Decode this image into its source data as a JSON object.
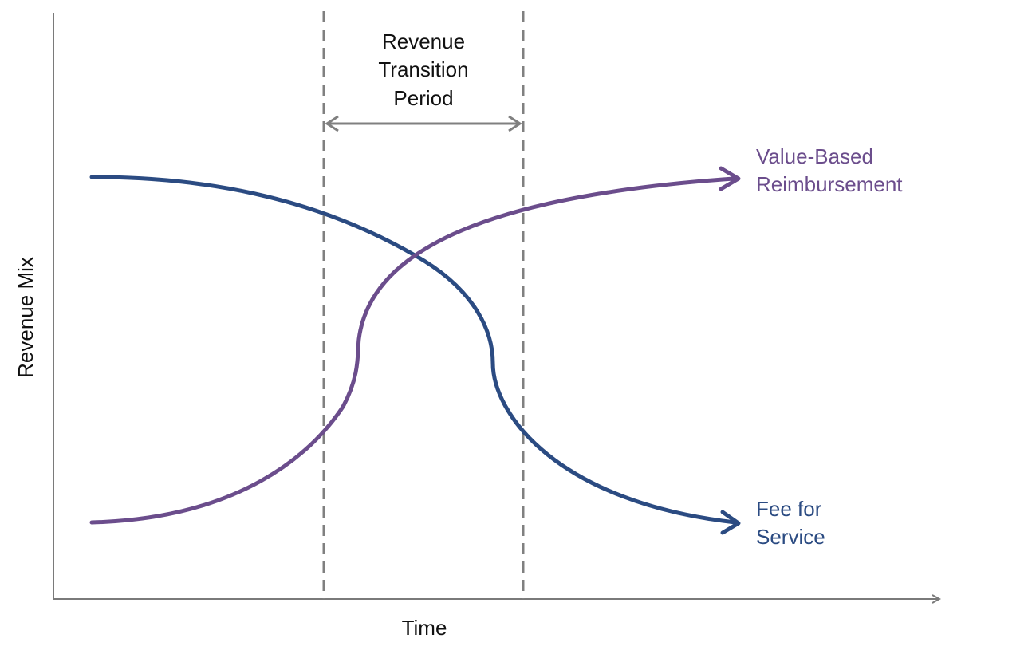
{
  "axes": {
    "y_label": "Revenue Mix",
    "x_label": "Time"
  },
  "transition": {
    "line1": "Revenue",
    "line2": "Transition",
    "line3": "Period"
  },
  "curves": {
    "value_based": {
      "line1": "Value-Based",
      "line2": "Reimbursement"
    },
    "fee_for_service": {
      "line1": "Fee for",
      "line2": "Service"
    }
  },
  "colors": {
    "value_based": "#6b4d8c",
    "fee_for_service": "#2b4b82",
    "axis": "#7a7a7a",
    "dashed": "#808080"
  }
}
